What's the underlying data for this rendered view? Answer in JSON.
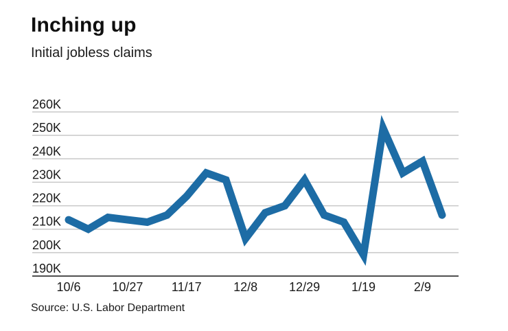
{
  "header": {
    "title": "Inching up",
    "subtitle": "Initial jobless claims"
  },
  "source": {
    "label": "Source: U.S. Labor Department"
  },
  "colors": {
    "line": "#1d6ca5",
    "grid": "#c8c8c8",
    "axis": "#4f4f4f",
    "text": "#1a1a1a",
    "background": "#ffffff"
  },
  "chart_data": {
    "type": "line",
    "title": "Inching up",
    "subtitle": "Initial jobless claims",
    "unit": "thousands of claims",
    "x": [
      "10/6",
      "10/13",
      "10/20",
      "10/27",
      "11/3",
      "11/10",
      "11/17",
      "11/24",
      "12/1",
      "12/8",
      "12/15",
      "12/22",
      "12/29",
      "1/5",
      "1/12",
      "1/19",
      "1/26",
      "2/2",
      "2/9",
      "2/16"
    ],
    "values": [
      214,
      210,
      215,
      214,
      213,
      216,
      224,
      234,
      231,
      206,
      217,
      220,
      231,
      216,
      213,
      199,
      253,
      234,
      239,
      216
    ],
    "x_tick_labels": [
      "10/6",
      "10/27",
      "11/17",
      "12/8",
      "12/29",
      "1/19",
      "2/9"
    ],
    "x_tick_indices": [
      0,
      3,
      6,
      9,
      12,
      15,
      18
    ],
    "y_tick_values": [
      260,
      250,
      240,
      230,
      220,
      210,
      200,
      190
    ],
    "y_tick_labels": [
      "260K",
      "250K",
      "240K",
      "230K",
      "220K",
      "210K",
      "200K",
      "190K"
    ],
    "ylim": [
      190,
      260
    ],
    "grid": "horizontal",
    "legend": "none",
    "source": "Source: U.S. Labor Department"
  }
}
